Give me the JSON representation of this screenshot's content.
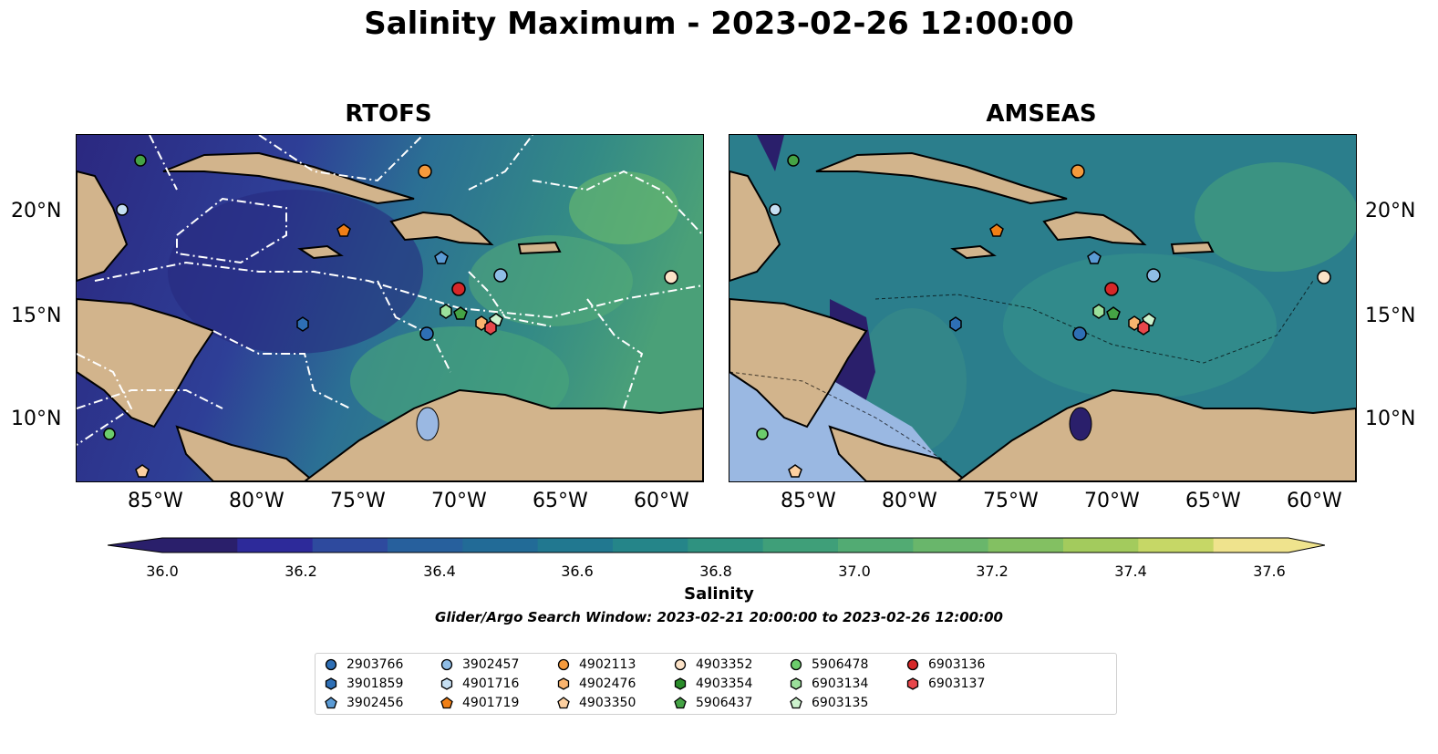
{
  "title": "Salinity Maximum - 2023-02-26 12:00:00",
  "panels": [
    {
      "name": "RTOFS"
    },
    {
      "name": "AMSEAS"
    }
  ],
  "lon_ticks": [
    "85°W",
    "80°W",
    "75°W",
    "70°W",
    "65°W",
    "60°W"
  ],
  "lat_ticks": [
    "20°N",
    "15°N",
    "10°N"
  ],
  "colorbar": {
    "label": "Salinity",
    "ticks": [
      "36.0",
      "36.2",
      "36.4",
      "36.6",
      "36.8",
      "37.0",
      "37.2",
      "37.4",
      "37.6"
    ],
    "colors": [
      "#2a1f6b",
      "#2d2a9a",
      "#2e4a9e",
      "#27609d",
      "#226b97",
      "#217890",
      "#258589",
      "#2f9280",
      "#3f9f79",
      "#52ab73",
      "#69b66b",
      "#83c062",
      "#a3cb5d",
      "#c6d766",
      "#efe38d"
    ]
  },
  "search_window": "Glider/Argo Search Window: 2023-02-21 20:00:00 to 2023-02-26 12:00:00",
  "legend": [
    {
      "id": "2903766",
      "marker": "circle",
      "color": "#2e6fb5"
    },
    {
      "id": "3901859",
      "marker": "hexagon",
      "color": "#2e6fb5"
    },
    {
      "id": "3902456",
      "marker": "pentagon",
      "color": "#5b9bd5"
    },
    {
      "id": "3902457",
      "marker": "circle",
      "color": "#8fbde6"
    },
    {
      "id": "4901716",
      "marker": "hexagon",
      "color": "#c6dff2"
    },
    {
      "id": "4901719",
      "marker": "pentagon",
      "color": "#f07f16"
    },
    {
      "id": "4902113",
      "marker": "circle",
      "color": "#f59a3c"
    },
    {
      "id": "4902476",
      "marker": "hexagon",
      "color": "#fab46e"
    },
    {
      "id": "4903350",
      "marker": "pentagon",
      "color": "#fdd0a0"
    },
    {
      "id": "4903352",
      "marker": "circle",
      "color": "#fde3c8"
    },
    {
      "id": "4903354",
      "marker": "hexagon",
      "color": "#2a8c2a"
    },
    {
      "id": "5906437",
      "marker": "pentagon",
      "color": "#45a345"
    },
    {
      "id": "5906478",
      "marker": "circle",
      "color": "#6ccc6c"
    },
    {
      "id": "6903134",
      "marker": "hexagon",
      "color": "#9be09b"
    },
    {
      "id": "6903135",
      "marker": "pentagon",
      "color": "#cdf2cd"
    },
    {
      "id": "6903136",
      "marker": "circle",
      "color": "#d62728"
    },
    {
      "id": "6903137",
      "marker": "hexagon",
      "color": "#e8474b"
    }
  ],
  "colors": {
    "land": "#d2b48c",
    "lake": "#9ab8e2",
    "coast": "#000000",
    "eez": "#ffffff"
  }
}
